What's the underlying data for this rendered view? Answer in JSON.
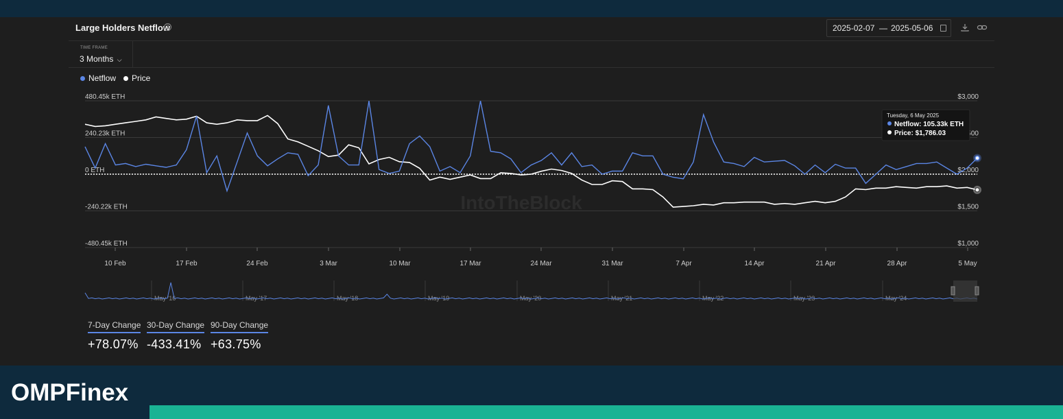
{
  "colors": {
    "netflow": "#5b86e5",
    "price": "#ffffff",
    "background": "#1e1e1e",
    "brand_dark": "#0e2a3d",
    "brand_accent": "#1ab394"
  },
  "header": {
    "title": "Large Holders Netflow",
    "help_icon": "question-circle-icon",
    "date_from": "2025-02-07",
    "date_sep": "—",
    "date_to": "2025-05-06",
    "calendar_icon": "calendar-icon",
    "download_icon": "download-icon",
    "link_icon": "link-icon"
  },
  "timeframe": {
    "label": "TIME FRAME",
    "value": "3 Months"
  },
  "legend": {
    "netflow": "Netflow",
    "price": "Price"
  },
  "watermark": "IntoTheBlock",
  "tooltip": {
    "date": "Tuesday, 6 May 2025",
    "netflow": "Netflow: 105.33k ETH",
    "price": "Price: $1,786.03"
  },
  "chart_data": {
    "type": "line",
    "x_start": "2025-02-07",
    "x_end": "2025-05-06",
    "x_tick_labels": [
      "10 Feb",
      "17 Feb",
      "24 Feb",
      "3 Mar",
      "10 Mar",
      "17 Mar",
      "24 Mar",
      "31 Mar",
      "7 Apr",
      "14 Apr",
      "21 Apr",
      "28 Apr",
      "5 May"
    ],
    "left_axis_ticks": [
      "480.45k ETH",
      "240.23k ETH",
      "0 ETH",
      "-240.22k ETH",
      "-480.45k ETH"
    ],
    "right_axis_ticks": [
      "$3,000",
      "$2,500",
      "$2,000",
      "$1,500",
      "$1,000"
    ],
    "left_ylim": [
      -480.45,
      480.45
    ],
    "right_ylim": [
      1000,
      3000
    ],
    "series": [
      {
        "name": "Netflow",
        "axis": "left",
        "unit": "k ETH",
        "values": [
          180,
          40,
          200,
          60,
          70,
          50,
          65,
          55,
          45,
          60,
          160,
          380,
          10,
          120,
          -110,
          80,
          270,
          120,
          55,
          100,
          140,
          130,
          -10,
          60,
          450,
          120,
          60,
          60,
          480,
          30,
          5,
          20,
          200,
          250,
          180,
          20,
          50,
          10,
          120,
          480,
          150,
          140,
          100,
          10,
          60,
          90,
          140,
          60,
          140,
          50,
          60,
          0,
          20,
          20,
          140,
          120,
          120,
          0,
          -20,
          -30,
          80,
          390,
          210,
          80,
          70,
          50,
          110,
          80,
          85,
          90,
          55,
          0,
          60,
          10,
          65,
          40,
          40,
          -60,
          0,
          60,
          30,
          50,
          70,
          70,
          80,
          40,
          0,
          40,
          105.33
        ]
      },
      {
        "name": "Price",
        "axis": "right",
        "unit": "USD",
        "values": [
          2680,
          2650,
          2660,
          2680,
          2700,
          2720,
          2740,
          2780,
          2760,
          2740,
          2750,
          2790,
          2700,
          2680,
          2700,
          2740,
          2730,
          2730,
          2800,
          2690,
          2480,
          2440,
          2380,
          2320,
          2240,
          2260,
          2400,
          2360,
          2140,
          2200,
          2230,
          2170,
          2160,
          2080,
          1920,
          1960,
          1930,
          1960,
          1990,
          1940,
          1940,
          2020,
          2010,
          1990,
          2000,
          2040,
          2070,
          2050,
          2010,
          1920,
          1860,
          1860,
          1910,
          1900,
          1800,
          1800,
          1790,
          1690,
          1550,
          1560,
          1570,
          1590,
          1580,
          1610,
          1610,
          1620,
          1620,
          1620,
          1590,
          1600,
          1590,
          1610,
          1630,
          1610,
          1630,
          1690,
          1800,
          1790,
          1810,
          1810,
          1830,
          1820,
          1810,
          1830,
          1830,
          1840,
          1810,
          1820,
          1786.03
        ]
      }
    ],
    "navigator_labels": [
      "May '16",
      "May '17",
      "May '18",
      "May '19",
      "May '20",
      "May '21",
      "May '22",
      "May '23",
      "May '24"
    ],
    "grid": true,
    "legend_position": "top-left"
  },
  "stats": [
    {
      "label": "7-Day Change",
      "value": "+78.07%"
    },
    {
      "label": "30-Day Change",
      "value": "-433.41%"
    },
    {
      "label": "90-Day Change",
      "value": "+63.75%"
    }
  ],
  "footer": {
    "logo": "OMPFinex"
  }
}
